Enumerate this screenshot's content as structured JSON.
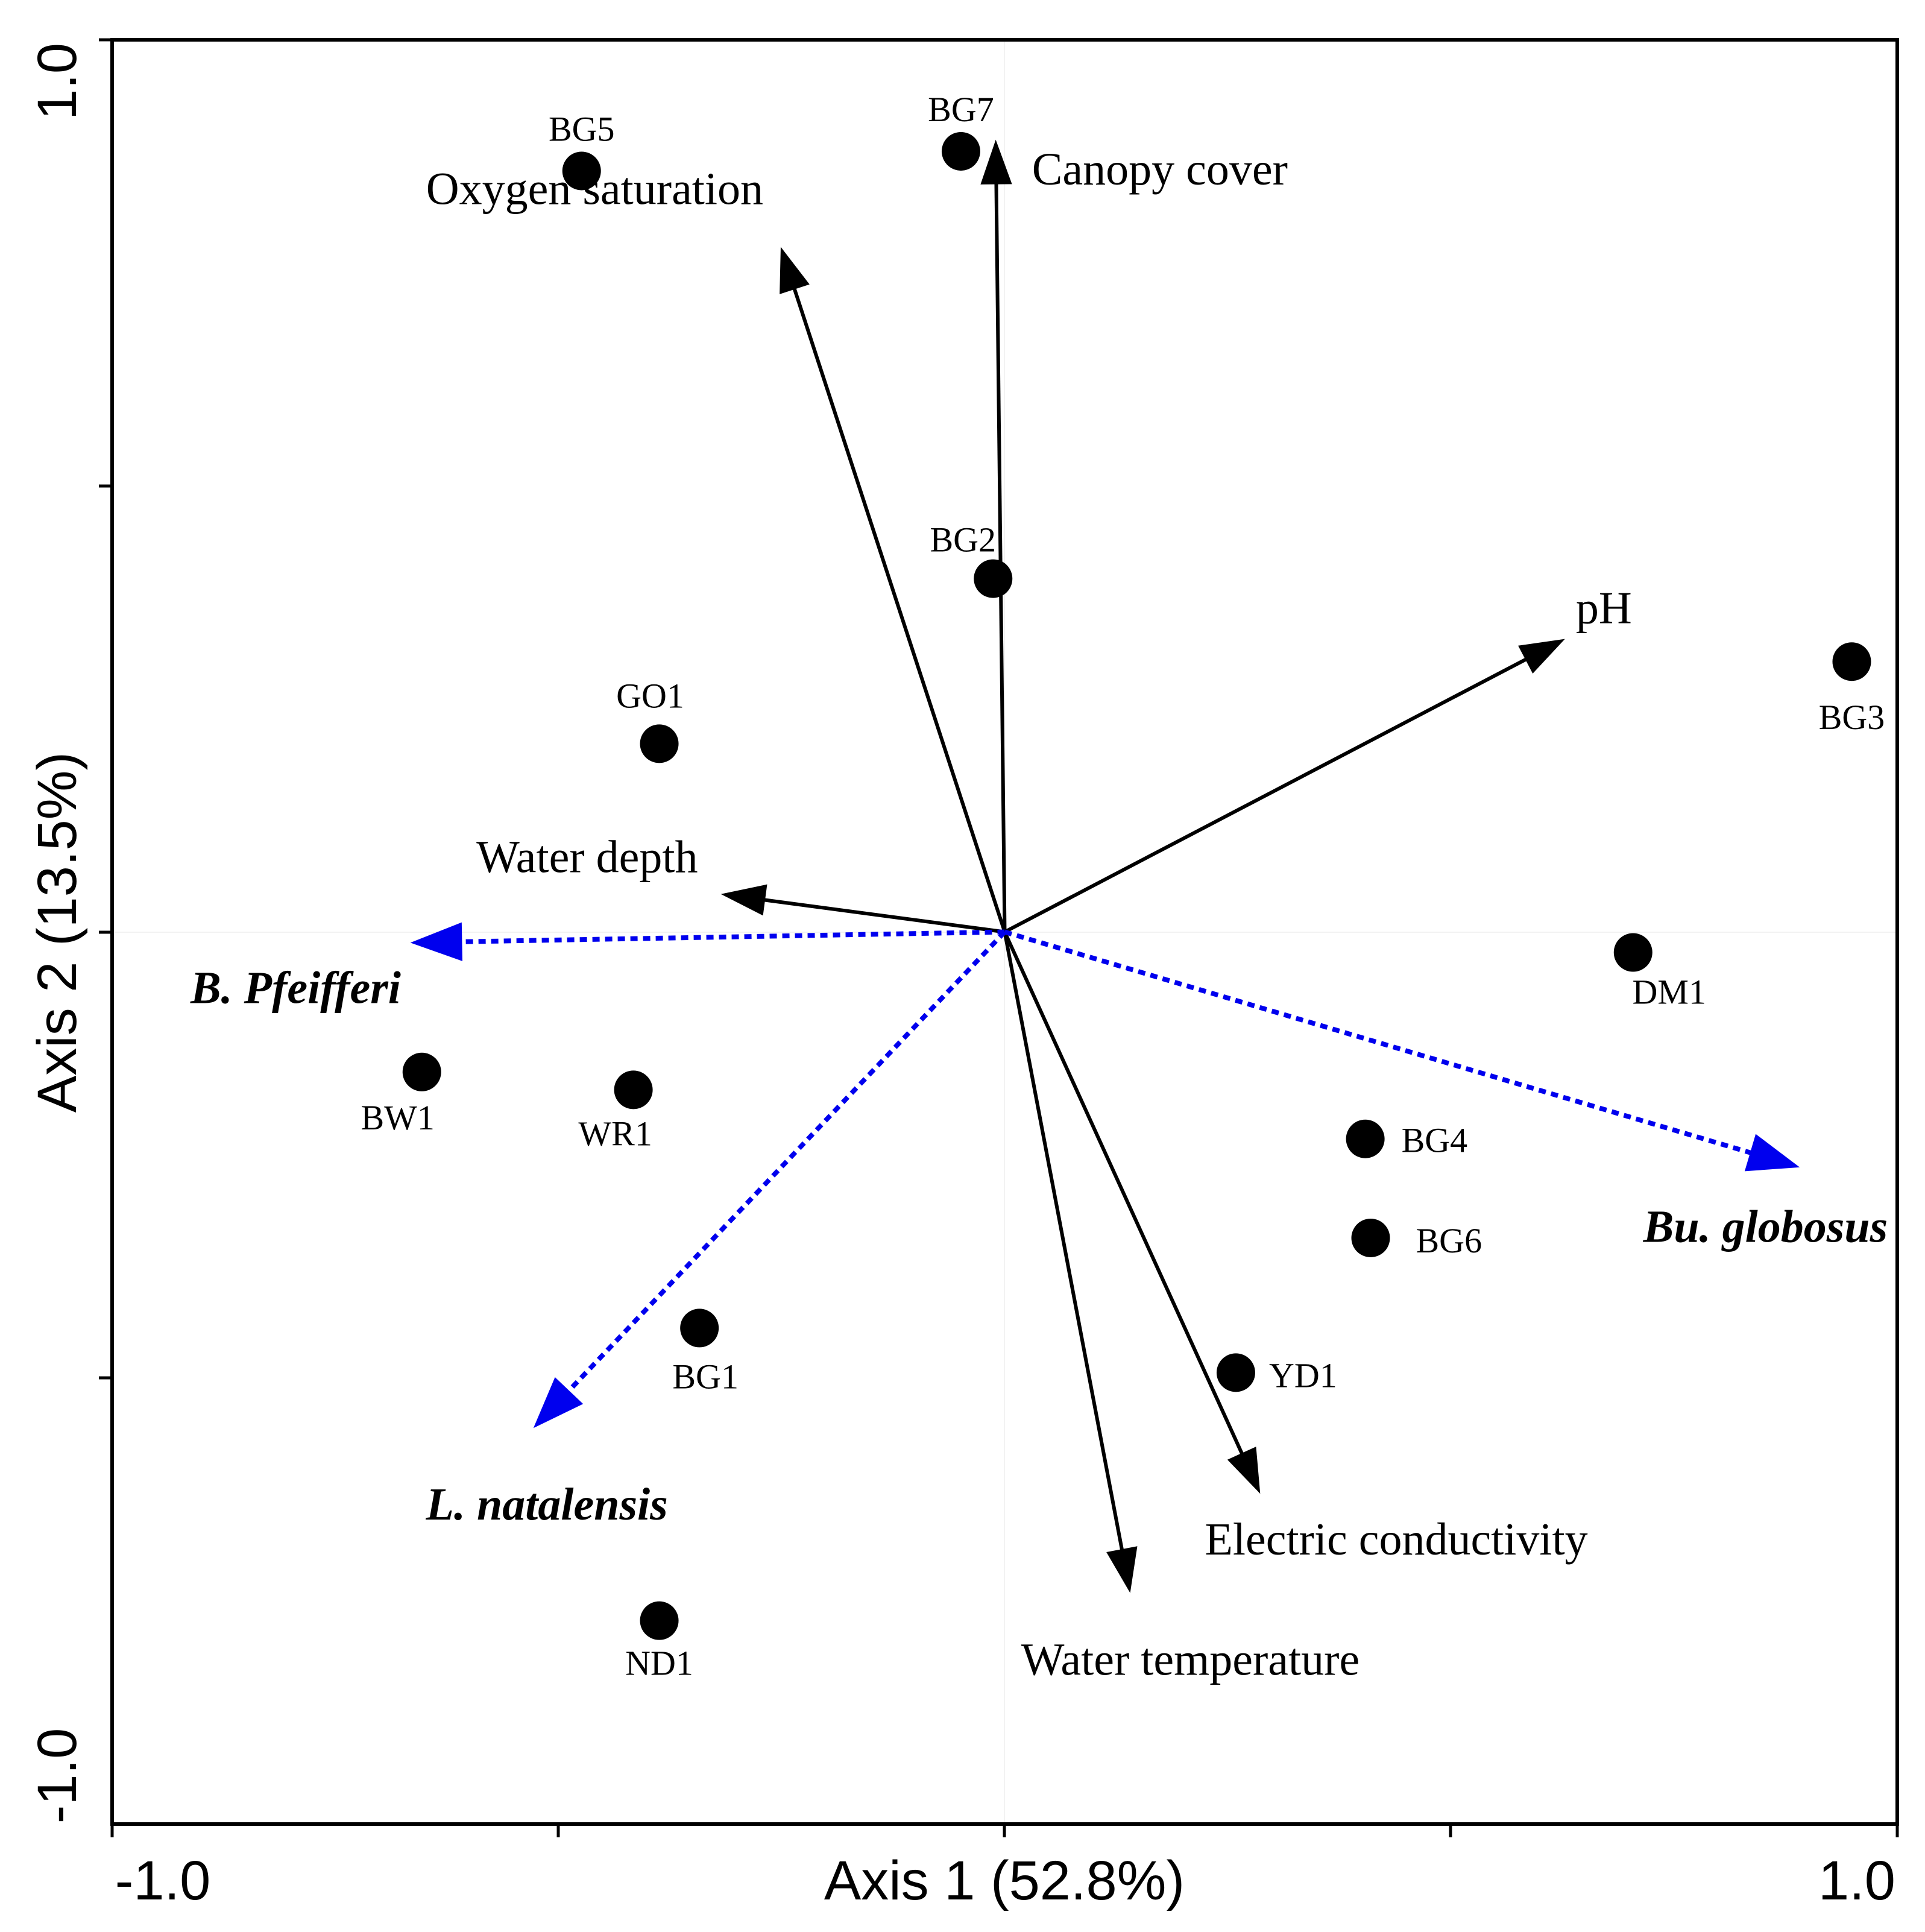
{
  "chart_data": {
    "type": "scatter",
    "subtype": "ordination biplot",
    "title": "",
    "xlabel": "Axis 1 (52.8%)",
    "ylabel": "Axis 2 (13.5%)",
    "xlim": [
      -1.0,
      1.0
    ],
    "ylim": [
      -1.0,
      1.0
    ],
    "x_tick_labels": [
      "-1.0",
      "1.0"
    ],
    "y_tick_labels": [
      "-1.0",
      "1.0"
    ],
    "grid": false,
    "legend": "none",
    "sites": [
      {
        "label": "BG5",
        "x": -0.474,
        "y": 0.853
      },
      {
        "label": "BG7",
        "x": -0.049,
        "y": 0.875
      },
      {
        "label": "BG2",
        "x": -0.013,
        "y": 0.396
      },
      {
        "label": "GO1",
        "x": -0.387,
        "y": 0.211
      },
      {
        "label": "BG3",
        "x": 0.949,
        "y": 0.303
      },
      {
        "label": "DM1",
        "x": 0.704,
        "y": -0.023
      },
      {
        "label": "BW1",
        "x": -0.653,
        "y": -0.157
      },
      {
        "label": "WR1",
        "x": -0.416,
        "y": -0.177
      },
      {
        "label": "BG4",
        "x": 0.404,
        "y": -0.232
      },
      {
        "label": "BG6",
        "x": 0.41,
        "y": -0.343
      },
      {
        "label": "BG1",
        "x": -0.342,
        "y": -0.444
      },
      {
        "label": "YD1",
        "x": 0.259,
        "y": -0.494
      },
      {
        "label": "ND1",
        "x": -0.387,
        "y": -0.772
      }
    ],
    "environmental_vectors": [
      {
        "label": "Oxygen saturation",
        "x": -0.25,
        "y": 0.765
      },
      {
        "label": "Canopy cover",
        "x": -0.01,
        "y": 0.885
      },
      {
        "label": "pH",
        "x": 0.625,
        "y": 0.327
      },
      {
        "label": "Water depth",
        "x": -0.315,
        "y": 0.042
      },
      {
        "label": "Electric conductivity",
        "x": 0.285,
        "y": -0.627
      },
      {
        "label": "Water temperature",
        "x": 0.14,
        "y": -0.738
      }
    ],
    "species_vectors": [
      {
        "label": "B. Pfeifferi",
        "x": -0.663,
        "y": -0.012,
        "color": "#0000ee"
      },
      {
        "label": "L. natalensis",
        "x": -0.526,
        "y": -0.554,
        "color": "#0000ee"
      },
      {
        "label": "Bu. globosus",
        "x": 0.888,
        "y": -0.263,
        "color": "#0000ee"
      }
    ]
  },
  "colors": {
    "axis": "#000000",
    "environmental_arrow": "#000000",
    "species_arrow": "#0000ee",
    "site_marker": "#000000"
  }
}
